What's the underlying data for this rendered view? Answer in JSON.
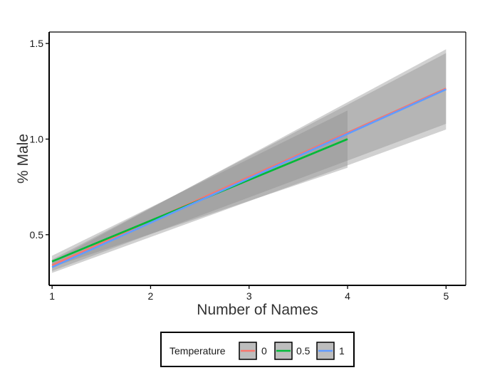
{
  "chart_data": {
    "type": "line",
    "xlabel": "Number of Names",
    "ylabel": "% Male",
    "xlim": [
      0.97,
      5.2
    ],
    "ylim": [
      0.235,
      1.56
    ],
    "xticks": [
      "1",
      "2",
      "3",
      "4",
      "5"
    ],
    "yticks": [
      "0.5",
      "1.0",
      "1.5"
    ],
    "grid": false,
    "legend": {
      "title": "Temperature",
      "placement": "bottom",
      "entries": [
        "0",
        "0.5",
        "1"
      ]
    },
    "series": [
      {
        "name": "0",
        "color": "#f8766d",
        "x": [
          1,
          5
        ],
        "y": [
          0.34,
          1.265
        ],
        "ci_lower": [
          0.31,
          1.08
        ],
        "ci_upper": [
          0.37,
          1.45
        ]
      },
      {
        "name": "0.5",
        "color": "#00ba38",
        "x": [
          1,
          4
        ],
        "y": [
          0.36,
          1.0
        ],
        "ci_lower": [
          0.33,
          0.85
        ],
        "ci_upper": [
          0.39,
          1.15
        ]
      },
      {
        "name": "1",
        "color": "#619cff",
        "x": [
          1,
          5
        ],
        "y": [
          0.33,
          1.26
        ],
        "ci_lower": [
          0.3,
          1.05
        ],
        "ci_upper": [
          0.36,
          1.47
        ]
      }
    ]
  }
}
